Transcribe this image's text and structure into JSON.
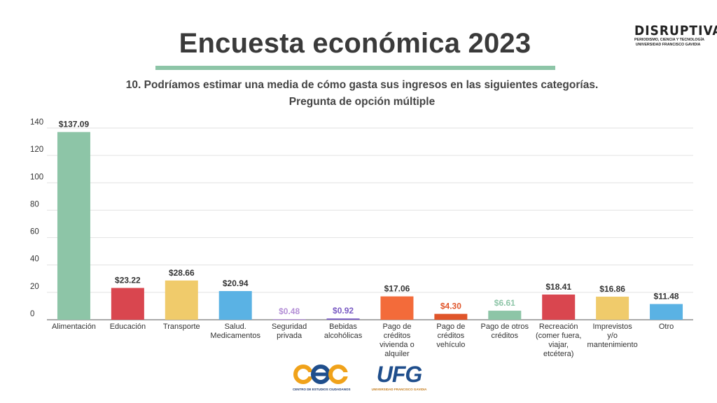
{
  "header": {
    "title": "Encuesta económica 2023",
    "rule_color": "#8dc5a7"
  },
  "brand": {
    "name": "DISRUPTIVA",
    "tagline": "PERIODISMO, CIENCIA Y TECNOLOGÍA",
    "institution": "UNIVERSIDAD FRANCISCO GAVIDIA"
  },
  "question": {
    "text": "10. Podríamos estimar una media de cómo gasta sus ingresos en las siguientes categorías.",
    "type": "Pregunta de opción múltiple"
  },
  "chart_data": {
    "type": "bar",
    "title": "",
    "xlabel": "",
    "ylabel": "",
    "ylim": [
      0,
      140
    ],
    "yticks": [
      0,
      20,
      40,
      60,
      80,
      100,
      120,
      140
    ],
    "grid": true,
    "categories": [
      [
        "Alimentación"
      ],
      [
        "Educación"
      ],
      [
        "Transporte"
      ],
      [
        "Salud.",
        "Medicamentos"
      ],
      [
        "Seguridad",
        "privada"
      ],
      [
        "Bebidas",
        "alcohólicas"
      ],
      [
        "Pago de",
        "créditos",
        "vivienda o",
        "alquiler"
      ],
      [
        "Pago de",
        "créditos",
        "vehículo"
      ],
      [
        "Pago de otros",
        "créditos"
      ],
      [
        "Recreación",
        "(comer fuera,",
        "viajar,",
        "etcétera)"
      ],
      [
        "Imprevistos",
        "y/o",
        "mantenimiento"
      ],
      [
        "Otro"
      ]
    ],
    "values": [
      137.09,
      23.22,
      28.66,
      20.94,
      0.48,
      0.92,
      17.06,
      4.3,
      6.61,
      18.41,
      16.86,
      11.48
    ],
    "value_labels": [
      "$137.09",
      "$23.22",
      "$28.66",
      "$20.94",
      "$0.48",
      "$0.92",
      "$17.06",
      "$4.30",
      "$6.61",
      "$18.41",
      "$16.86",
      "$11.48"
    ],
    "bar_colors": [
      "#8dc5a7",
      "#d9464f",
      "#f0cb6b",
      "#5ab2e4",
      "#b48fd6",
      "#7a5bc4",
      "#f36b3a",
      "#e0552a",
      "#8dc5a7",
      "#d9464f",
      "#f0cb6b",
      "#5ab2e4"
    ],
    "label_colors": [
      "#333333",
      "#333333",
      "#333333",
      "#333333",
      "#b48fd6",
      "#7a5bc4",
      "#333333",
      "#e0552a",
      "#8dc5a7",
      "#333333",
      "#333333",
      "#333333"
    ]
  },
  "footer": {
    "logo_left_mark": "cec",
    "logo_left_caption": "CENTRO DE ESTUDIOS CIUDADANOS",
    "logo_right_mark": "UFG",
    "logo_right_caption": "UNIVERSIDAD FRANCISCO GAVIDIA"
  }
}
